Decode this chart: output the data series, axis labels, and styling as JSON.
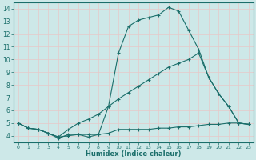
{
  "bg_color": "#cde8e8",
  "grid_color": "#b8d8d8",
  "line_color": "#1a6e6a",
  "xlabel": "Humidex (Indice chaleur)",
  "xlim": [
    -0.5,
    23.5
  ],
  "ylim": [
    3.5,
    14.5
  ],
  "xticks": [
    0,
    1,
    2,
    3,
    4,
    5,
    6,
    7,
    8,
    9,
    10,
    11,
    12,
    13,
    14,
    15,
    16,
    17,
    18,
    19,
    20,
    21,
    22,
    23
  ],
  "yticks": [
    4,
    5,
    6,
    7,
    8,
    9,
    10,
    11,
    12,
    13,
    14
  ],
  "line1_x": [
    0,
    1,
    2,
    3,
    4,
    5,
    6,
    7,
    8,
    9,
    10,
    11,
    12,
    13,
    14,
    15,
    16,
    17,
    18,
    19,
    20,
    21,
    22,
    23
  ],
  "line1_y": [
    5.0,
    4.6,
    4.5,
    4.2,
    3.8,
    4.1,
    4.1,
    3.9,
    4.1,
    6.3,
    10.5,
    12.6,
    13.1,
    13.3,
    13.5,
    14.1,
    13.8,
    12.3,
    10.8,
    8.6,
    7.3,
    6.3,
    5.0,
    4.9
  ],
  "line2_x": [
    0,
    1,
    2,
    3,
    4,
    5,
    6,
    7,
    8,
    9,
    10,
    11,
    12,
    13,
    14,
    15,
    16,
    17,
    18,
    19,
    20,
    21,
    22,
    23
  ],
  "line2_y": [
    5.0,
    4.6,
    4.5,
    4.2,
    3.9,
    4.5,
    5.0,
    5.3,
    5.7,
    6.3,
    6.9,
    7.4,
    7.9,
    8.4,
    8.9,
    9.4,
    9.7,
    10.0,
    10.5,
    8.6,
    7.3,
    6.3,
    5.0,
    4.9
  ],
  "line3_x": [
    0,
    1,
    2,
    3,
    4,
    5,
    6,
    7,
    8,
    9,
    10,
    11,
    12,
    13,
    14,
    15,
    16,
    17,
    18,
    19,
    20,
    21,
    22,
    23
  ],
  "line3_y": [
    5.0,
    4.6,
    4.5,
    4.2,
    3.9,
    4.0,
    4.1,
    4.1,
    4.1,
    4.2,
    4.5,
    4.5,
    4.5,
    4.5,
    4.6,
    4.6,
    4.7,
    4.7,
    4.8,
    4.9,
    4.9,
    5.0,
    5.0,
    4.9
  ]
}
